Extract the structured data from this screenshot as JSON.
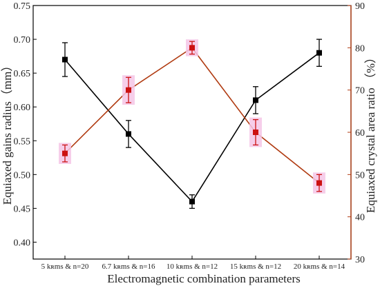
{
  "chart_data": {
    "type": "line",
    "xlabel": "Electromagnetic combination parameters",
    "ylabel_left": "Equiaxed gains radius（mm）",
    "ylabel_right": "Equiaxed crystal area ratio （%）",
    "categories": [
      "5 kʀms & n=20",
      "6.7 kʀms & n=16",
      "10 kʀms & n=12",
      "15 kʀms & n=12",
      "20 kʀms & n=14"
    ],
    "ylim_left": [
      0.375,
      0.75
    ],
    "yticks_left": [
      "0.40",
      "0.45",
      "0.50",
      "0.55",
      "0.60",
      "0.65",
      "0.70",
      "0.75"
    ],
    "ylim_right": [
      30,
      90
    ],
    "yticks_right": [
      "30",
      "40",
      "50",
      "60",
      "70",
      "80",
      "90"
    ],
    "grid": false,
    "series": [
      {
        "axis": "left",
        "color": "#000000",
        "marker": "square",
        "values": [
          0.67,
          0.56,
          0.46,
          0.61,
          0.68
        ],
        "errors": [
          0.025,
          0.02,
          0.01,
          0.02,
          0.02
        ]
      },
      {
        "axis": "right",
        "color": "#cc1111",
        "line_color": "#b03a10",
        "marker": "square",
        "values": [
          55,
          70,
          80,
          60,
          48
        ],
        "errors": [
          2,
          3,
          1.5,
          3,
          2
        ]
      }
    ]
  }
}
